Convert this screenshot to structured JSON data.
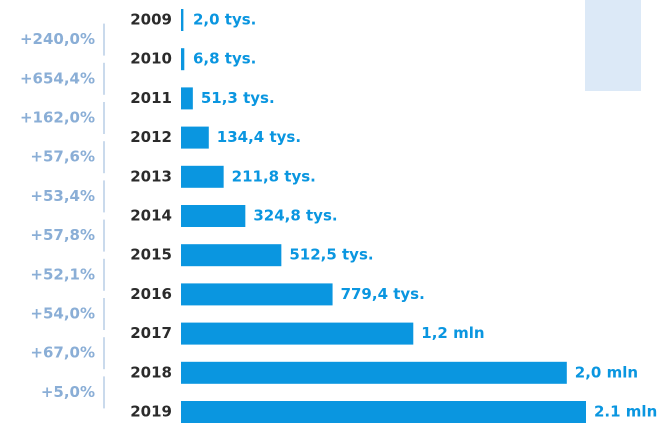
{
  "chart_data": {
    "type": "hbar",
    "categories": [
      "2009",
      "2010",
      "2011",
      "2012",
      "2013",
      "2014",
      "2015",
      "2016",
      "2017",
      "2018",
      "2019"
    ],
    "values": [
      2.0,
      6.8,
      51.3,
      134.4,
      211.8,
      324.8,
      512.5,
      779.4,
      1200,
      2000,
      2100
    ],
    "value_labels": [
      "2,0 tys.",
      "6,8 tys.",
      "51,3 tys.",
      "134,4 tys.",
      "211,8 tys.",
      "324,8 tys.",
      "512,5 tys.",
      "779,4 tys.",
      "1,2 mln",
      "2,0 mln",
      "2.1 mln"
    ],
    "growth_labels": [
      "+240,0%",
      "+654,4%",
      "+162,0%",
      "+57,6%",
      "+53,4%",
      "+57,8%",
      "+52,1%",
      "+54,0%",
      "+67,0%",
      "+5,0%"
    ],
    "color": "#0a96e0"
  }
}
